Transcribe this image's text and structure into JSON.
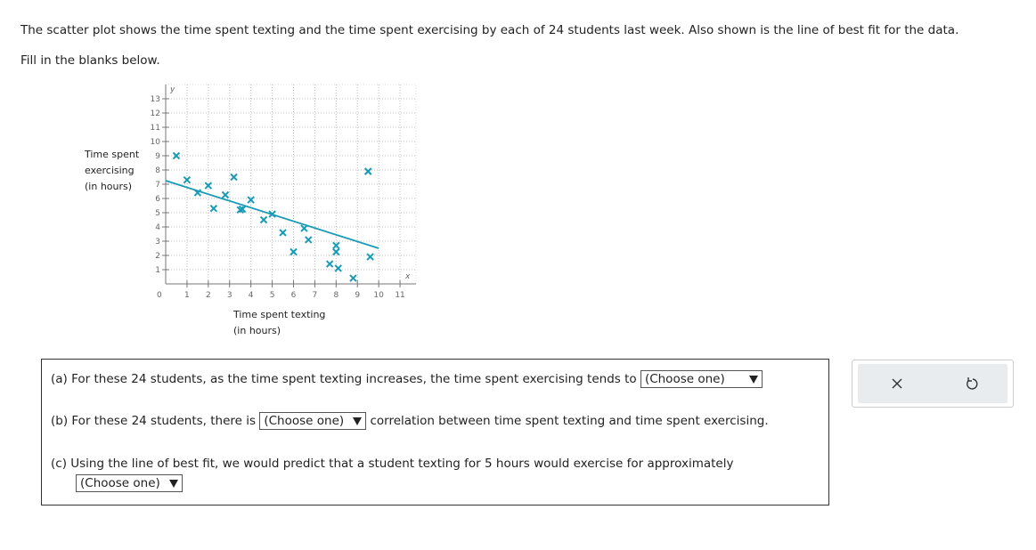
{
  "prompt": {
    "line1": "The scatter plot shows the time spent texting and the time spent exercising by each of 24 students last week. Also shown is the line of best fit for the data.",
    "line2": "Fill in the blanks below."
  },
  "chart_data": {
    "type": "scatter",
    "y_label": [
      "Time spent",
      "exercising",
      "(in hours)"
    ],
    "x_label": [
      "Time spent texting",
      "(in hours)"
    ],
    "x_axis_symbol": "x",
    "y_axis_symbol": "y",
    "origin_label": "0",
    "xlim": [
      0,
      11.75
    ],
    "ylim": [
      0,
      14
    ],
    "xticks": [
      1,
      2,
      3,
      4,
      5,
      6,
      7,
      8,
      9,
      10,
      11
    ],
    "yticks": [
      1,
      2,
      3,
      4,
      5,
      6,
      7,
      8,
      9,
      10,
      11,
      12,
      13
    ],
    "grid": true,
    "series": [
      {
        "color": "#1a9bb5",
        "x": [
          0.5,
          1,
          1.5,
          2,
          2.25,
          2.8,
          3.2,
          3.5,
          3.6,
          4,
          4.6,
          5,
          5.5,
          6,
          6.5,
          6.7,
          8,
          8,
          7.7,
          8.1,
          8.8,
          9.5,
          9.5,
          9.6
        ],
        "values": [
          9,
          7.3,
          6.4,
          6.9,
          5.3,
          6.25,
          7.5,
          5.2,
          5.25,
          5.9,
          4.5,
          4.9,
          3.6,
          2.25,
          3.9,
          3.1,
          2.7,
          2.25,
          1.4,
          1.1,
          0.4,
          7.9,
          7.9,
          1.9
        ]
      }
    ],
    "fit_line": {
      "color": "#1a9bb5",
      "x": [
        0,
        10
      ],
      "values": [
        7.25,
        2.5
      ]
    }
  },
  "questions": [
    {
      "before": "(a) For these 24 students, as the time spent texting increases, the time spent exercising tends to",
      "select": "(Choose one)",
      "after": ""
    },
    {
      "before": "(b) For these 24 students, there is",
      "select": "(Choose one)",
      "after": "correlation between time spent texting and time spent exercising."
    },
    {
      "before": "(c) Using the line of best fit, we would predict that a student texting for 5 hours would exercise for approximately",
      "select": "(Choose one)",
      "after": ""
    }
  ]
}
